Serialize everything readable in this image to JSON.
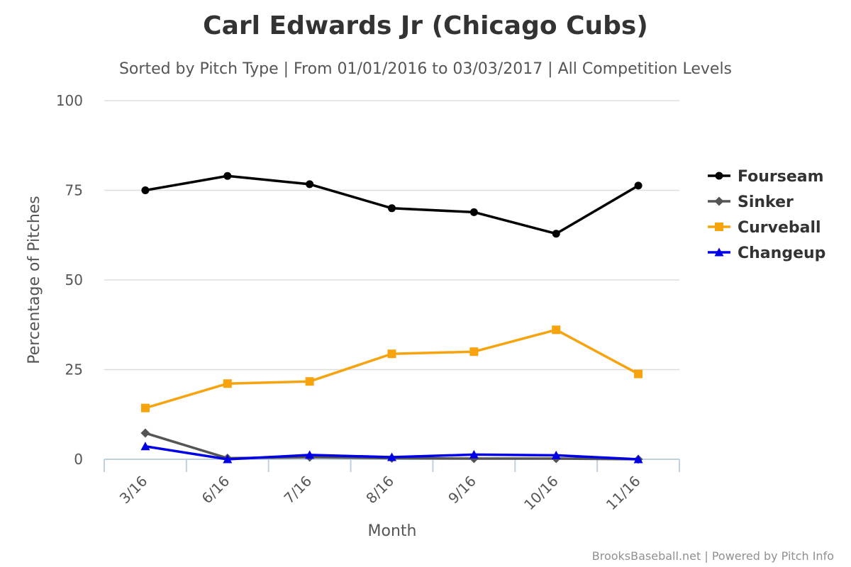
{
  "chart_data": {
    "type": "line",
    "title": "Carl Edwards Jr (Chicago Cubs)",
    "subtitle": "Sorted by Pitch Type | From 01/01/2016 to 03/03/2017 | All Competition Levels",
    "xlabel": "Month",
    "ylabel": "Percentage of Pitches",
    "categories": [
      "3/16",
      "6/16",
      "7/16",
      "8/16",
      "9/16",
      "10/16",
      "11/16"
    ],
    "ylim": [
      0,
      100
    ],
    "yticks": [
      0,
      25,
      50,
      75,
      100
    ],
    "grid": true,
    "legend_position": "right",
    "series": [
      {
        "name": "Fourseam",
        "color": "#000000",
        "marker": "circle",
        "values": [
          75.0,
          79.0,
          76.7,
          70.0,
          68.9,
          62.9,
          76.3
        ]
      },
      {
        "name": "Sinker",
        "color": "#555555",
        "marker": "diamond",
        "values": [
          7.3,
          0.3,
          0.6,
          0.3,
          0.2,
          0.2,
          0.0
        ]
      },
      {
        "name": "Curveball",
        "color": "#f7a30e",
        "marker": "square",
        "values": [
          14.3,
          21.1,
          21.7,
          29.4,
          30.0,
          36.1,
          23.8
        ]
      },
      {
        "name": "Changeup",
        "color": "#0000e6",
        "marker": "triangle",
        "values": [
          3.6,
          0.0,
          1.2,
          0.6,
          1.3,
          1.1,
          0.0
        ]
      }
    ]
  },
  "credits": "BrooksBaseball.net | Powered by Pitch Info"
}
